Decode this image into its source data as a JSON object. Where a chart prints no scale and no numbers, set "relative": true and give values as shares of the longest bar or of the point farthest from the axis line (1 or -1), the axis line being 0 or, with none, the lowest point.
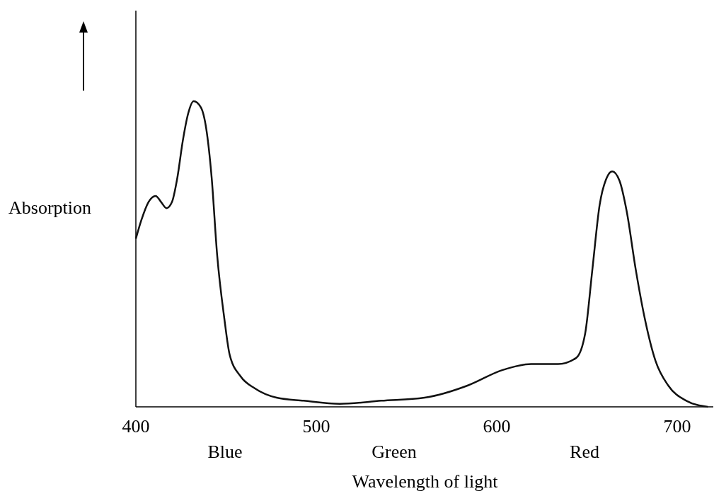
{
  "chart_data": {
    "type": "line",
    "xlabel": "Wavelength of light",
    "ylabel": "Absorption",
    "relative": true,
    "color": "#111111",
    "xlim": [
      400,
      720
    ],
    "xticks": [
      400,
      500,
      600,
      700
    ],
    "annotations": [
      "Blue",
      "Green",
      "Red"
    ],
    "x": [
      400,
      403,
      407,
      411,
      414,
      417,
      420,
      423,
      426,
      429,
      432,
      436,
      439,
      442,
      445,
      449,
      452,
      458,
      466,
      478,
      493,
      513,
      536,
      560,
      584,
      603,
      619,
      634,
      644,
      649,
      653,
      657,
      661,
      664,
      668,
      672,
      677,
      682,
      688,
      695,
      705,
      717
    ],
    "values": [
      0.55,
      0.61,
      0.67,
      0.69,
      0.67,
      0.65,
      0.67,
      0.75,
      0.87,
      0.96,
      1,
      0.98,
      0.91,
      0.75,
      0.5,
      0.29,
      0.17,
      0.1,
      0.06,
      0.03,
      0.02,
      0.01,
      0.02,
      0.03,
      0.07,
      0.12,
      0.14,
      0.14,
      0.16,
      0.24,
      0.45,
      0.66,
      0.75,
      0.77,
      0.74,
      0.64,
      0.45,
      0.29,
      0.15,
      0.07,
      0.02,
      0
    ]
  }
}
